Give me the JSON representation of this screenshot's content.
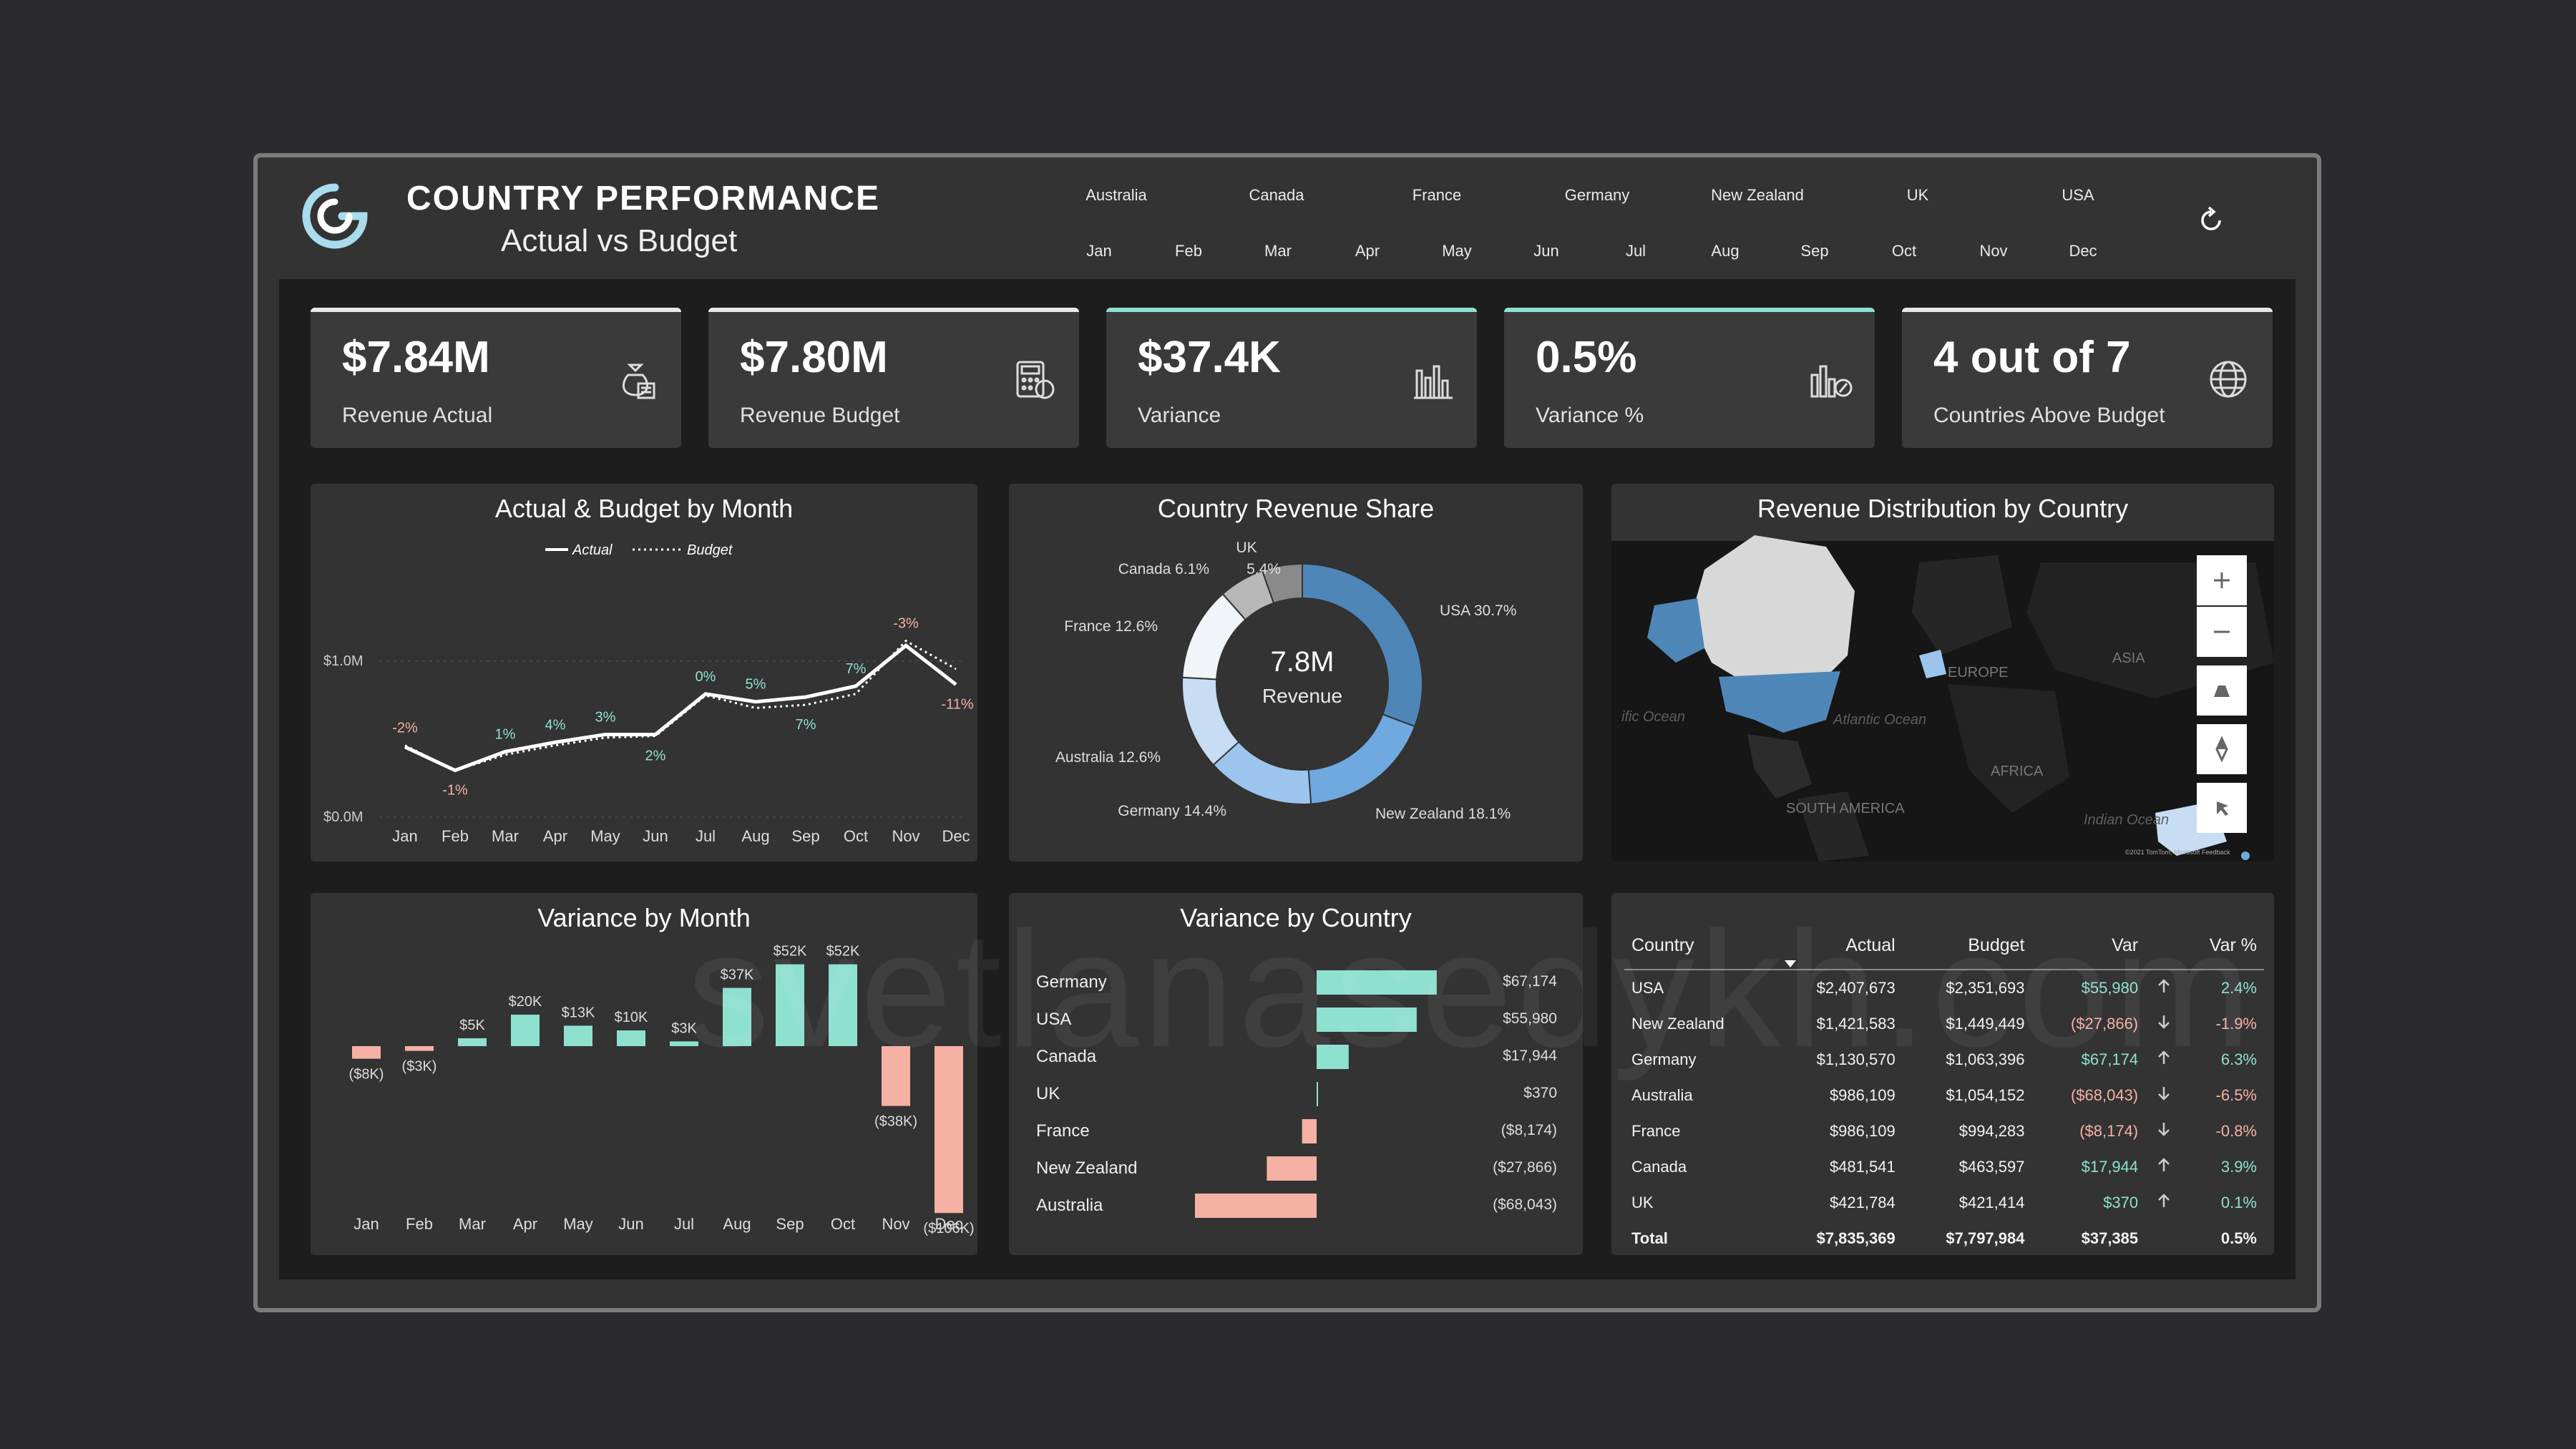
{
  "header": {
    "title": "COUNTRY PERFORMANCE",
    "subtitle": "Actual vs Budget"
  },
  "slicers": {
    "countries": [
      "Australia",
      "Canada",
      "France",
      "Germany",
      "New Zealand",
      "UK",
      "USA"
    ],
    "months": [
      "Jan",
      "Feb",
      "Mar",
      "Apr",
      "May",
      "Jun",
      "Jul",
      "Aug",
      "Sep",
      "Oct",
      "Nov",
      "Dec"
    ]
  },
  "kpis": [
    {
      "value": "$7.84M",
      "label": "Revenue Actual",
      "icon": "money-bag-icon"
    },
    {
      "value": "$7.80M",
      "label": "Revenue Budget",
      "icon": "calculator-icon"
    },
    {
      "value": "$37.4K",
      "label": "Variance",
      "icon": "bar-chart-icon"
    },
    {
      "value": "0.5%",
      "label": "Variance %",
      "icon": "chart-percent-icon"
    },
    {
      "value": "4 out of 7",
      "label": "Countries Above Budget",
      "icon": "globe-icon"
    }
  ],
  "charts": {
    "monthly": {
      "title": "Actual & Budget by Month",
      "legend": [
        "Actual",
        "Budget"
      ],
      "y_ticks": [
        "$1.0M",
        "$0.0M"
      ],
      "months": [
        "Jan",
        "Feb",
        "Mar",
        "Apr",
        "May",
        "Jun",
        "Jul",
        "Aug",
        "Sep",
        "Oct",
        "Nov",
        "Dec"
      ],
      "actual_m": [
        0.45,
        0.3,
        0.42,
        0.48,
        0.53,
        0.53,
        0.79,
        0.74,
        0.77,
        0.84,
        1.1,
        0.85
      ],
      "budget_m": [
        0.46,
        0.3,
        0.4,
        0.46,
        0.51,
        0.52,
        0.78,
        0.7,
        0.72,
        0.79,
        1.13,
        0.95
      ],
      "var_labels": [
        "-2%",
        "-1%",
        "1%",
        "4%",
        "3%",
        "2%",
        "0%",
        "5%",
        "7%",
        "7%",
        "-3%",
        "-11%"
      ]
    },
    "share": {
      "title": "Country Revenue Share",
      "center_value": "7.8M",
      "center_label": "Revenue",
      "slices": [
        {
          "name": "USA",
          "pct": 30.7,
          "label": "USA 30.7%",
          "color": "#4f86b8"
        },
        {
          "name": "New Zealand",
          "pct": 18.1,
          "label": "New Zealand 18.1%",
          "color": "#6fa9e0"
        },
        {
          "name": "Germany",
          "pct": 14.4,
          "label": "Germany 14.4%",
          "color": "#9cc5ee"
        },
        {
          "name": "Australia",
          "pct": 12.6,
          "label": "Australia 12.6%",
          "color": "#c6ddf4"
        },
        {
          "name": "France",
          "pct": 12.6,
          "label": "France 12.6%",
          "color": "#f1f4f8"
        },
        {
          "name": "Canada",
          "pct": 6.1,
          "label": "Canada 6.1%",
          "color": "#b8b8b8"
        },
        {
          "name": "UK",
          "pct": 5.4,
          "label": "UK 5.4%",
          "color": "#8a8a8a"
        }
      ]
    },
    "map": {
      "title": "Revenue Distribution by Country",
      "labels": [
        "EUROPE",
        "ASIA",
        "AFRICA",
        "SOUTH AMERICA",
        "Atlantic Ocean",
        "ific Ocean",
        "Indian Ocean"
      ],
      "attribution": "©2021 TomTom, Microsoft Feedback",
      "controls": [
        "zoom-in",
        "zoom-out",
        "tilt",
        "compass",
        "select"
      ]
    },
    "variance_month": {
      "title": "Variance by Month",
      "months": [
        "Jan",
        "Feb",
        "Mar",
        "Apr",
        "May",
        "Jun",
        "Jul",
        "Aug",
        "Sep",
        "Oct",
        "Nov",
        "Dec"
      ],
      "values_k": [
        -8,
        -3,
        5,
        20,
        13,
        10,
        3,
        37,
        52,
        52,
        -38,
        -106
      ],
      "labels": [
        "($8K)",
        "($3K)",
        "$5K",
        "$20K",
        "$13K",
        "$10K",
        "$3K",
        "$37K",
        "$52K",
        "$52K",
        "($38K)",
        "($106K)"
      ]
    },
    "variance_country": {
      "title": "Variance by Country",
      "countries": [
        "Germany",
        "USA",
        "Canada",
        "UK",
        "France",
        "New Zealand",
        "Australia"
      ],
      "values": [
        67174,
        55980,
        17944,
        370,
        -8174,
        -27866,
        -68043
      ],
      "labels": [
        "$67,174",
        "$55,980",
        "$17,944",
        "$370",
        "($8,174)",
        "($27,866)",
        "($68,043)"
      ]
    }
  },
  "table": {
    "headers": [
      "Country",
      "Actual",
      "Budget",
      "Var",
      "Var %"
    ],
    "rows": [
      [
        "USA",
        "$2,407,673",
        "$2,351,693",
        "$55,980",
        "2.4%"
      ],
      [
        "New Zealand",
        "$1,421,583",
        "$1,449,449",
        "($27,866)",
        "-1.9%"
      ],
      [
        "Germany",
        "$1,130,570",
        "$1,063,396",
        "$67,174",
        "6.3%"
      ],
      [
        "Australia",
        "$986,109",
        "$1,054,152",
        "($68,043)",
        "-6.5%"
      ],
      [
        "France",
        "$986,109",
        "$994,283",
        "($8,174)",
        "-0.8%"
      ],
      [
        "Canada",
        "$481,541",
        "$463,597",
        "$17,944",
        "3.9%"
      ],
      [
        "UK",
        "$421,784",
        "$421,414",
        "$370",
        "0.1%"
      ]
    ],
    "total": [
      "Total",
      "$7,835,369",
      "$7,797,984",
      "$37,385",
      "0.5%"
    ]
  },
  "colors": {
    "positive": "#8ee0cf",
    "negative": "#f5b1a4",
    "panel": "#333333",
    "canvas": "#1d1d1d"
  },
  "watermark": "svetlanasedykh.com"
}
